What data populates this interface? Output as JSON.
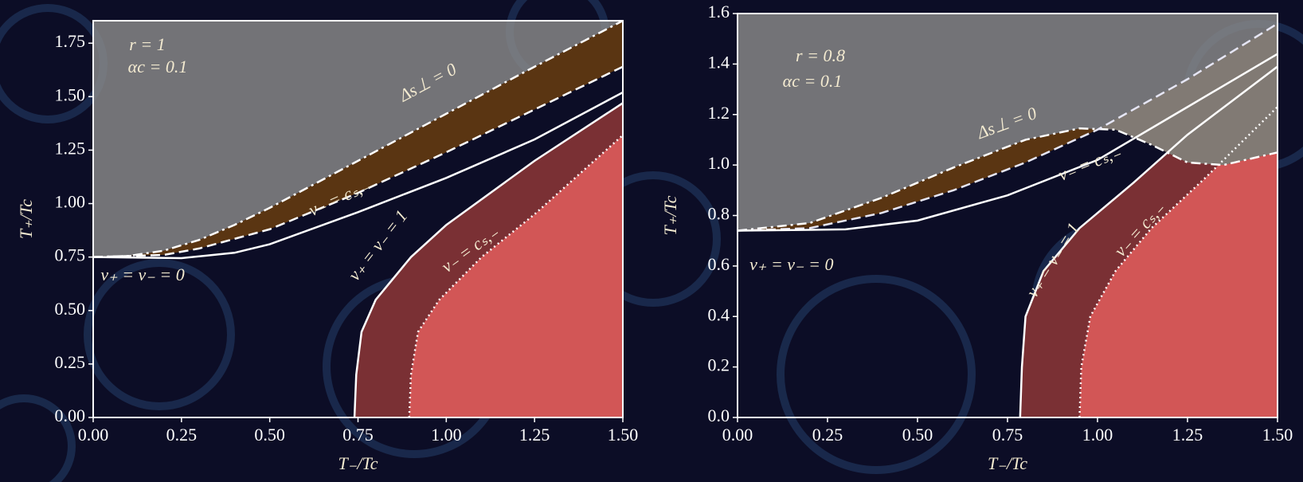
{
  "chart_data": [
    {
      "type": "line",
      "annotations": [
        "r = 1",
        "αc = 0.1"
      ],
      "xlabel": "T₋/Tc",
      "ylabel": "T₊/Tc",
      "xlim": [
        0,
        1.5
      ],
      "ylim": [
        0,
        1.855
      ],
      "xticks": [
        {
          "value": 0,
          "label": "0.00"
        },
        {
          "value": 0.25,
          "label": "0.25"
        },
        {
          "value": 0.5,
          "label": "0.50"
        },
        {
          "value": 0.75,
          "label": "0.75"
        },
        {
          "value": 1,
          "label": "1.00"
        },
        {
          "value": 1.25,
          "label": "1.25"
        },
        {
          "value": 1.5,
          "label": "1.50"
        }
      ],
      "yticks": [
        {
          "value": 0,
          "label": "0.00"
        },
        {
          "value": 0.25,
          "label": "0.25"
        },
        {
          "value": 0.5,
          "label": "0.50"
        },
        {
          "value": 0.75,
          "label": "0.75"
        },
        {
          "value": 1,
          "label": "1.00"
        },
        {
          "value": 1.25,
          "label": "1.25"
        },
        {
          "value": 1.5,
          "label": "1.50"
        },
        {
          "value": 1.75,
          "label": "1.75"
        }
      ],
      "region_colors": [
        "#8a8a8a",
        "#5a3512",
        "#7a3034",
        "#d25656"
      ],
      "series": [
        {
          "name": "Δs⊥ = 0",
          "color": "#ffffff",
          "dash": "dashdot",
          "x": [
            0,
            0.1,
            0.2,
            0.3,
            0.4,
            0.5,
            0.75,
            1.0,
            1.25,
            1.5
          ],
          "values": [
            0.75,
            0.755,
            0.78,
            0.83,
            0.9,
            0.98,
            1.2,
            1.42,
            1.64,
            1.855
          ]
        },
        {
          "name": "v₋ = cₛ,₋",
          "color": "#ffffff",
          "dash": "dashed",
          "x": [
            0,
            0.2,
            0.3,
            0.5,
            0.75,
            1.0,
            1.25,
            1.5
          ],
          "values": [
            0.75,
            0.76,
            0.79,
            0.88,
            1.05,
            1.24,
            1.44,
            1.64
          ]
        },
        {
          "name": "v₊ = v₋ = 0",
          "color": "#ffffff",
          "dash": "solid",
          "x": [
            0,
            0.25,
            0.4,
            0.5,
            0.75,
            1.0,
            1.25,
            1.5
          ],
          "values": [
            0.75,
            0.745,
            0.77,
            0.81,
            0.96,
            1.12,
            1.3,
            1.52
          ]
        },
        {
          "name": "v₊ = v₋ = 1",
          "color": "#ffffff",
          "dash": "solid",
          "x": [
            0.74,
            0.745,
            0.76,
            0.8,
            0.9,
            1.0,
            1.25,
            1.5
          ],
          "values": [
            0,
            0.2,
            0.4,
            0.55,
            0.75,
            0.9,
            1.2,
            1.47
          ]
        },
        {
          "name": "v₋ = cₛ,₋",
          "color": "#ffffff",
          "dash": "dotted",
          "x": [
            0.895,
            0.9,
            0.92,
            0.98,
            1.1,
            1.25,
            1.5
          ],
          "values": [
            0,
            0.2,
            0.4,
            0.55,
            0.75,
            0.95,
            1.32
          ]
        }
      ]
    },
    {
      "type": "line",
      "annotations": [
        "r = 0.8",
        "αc = 0.1"
      ],
      "xlabel": "T₋/Tc",
      "ylabel": "T₊/Tc",
      "xlim": [
        0,
        1.5
      ],
      "ylim": [
        0,
        1.6
      ],
      "xticks": [
        {
          "value": 0,
          "label": "0.00"
        },
        {
          "value": 0.25,
          "label": "0.25"
        },
        {
          "value": 0.5,
          "label": "0.50"
        },
        {
          "value": 0.75,
          "label": "0.75"
        },
        {
          "value": 1,
          "label": "1.00"
        },
        {
          "value": 1.25,
          "label": "1.25"
        },
        {
          "value": 1.5,
          "label": "1.50"
        }
      ],
      "yticks": [
        {
          "value": 0,
          "label": "0.0"
        },
        0.2,
        0.4,
        0.6,
        0.8,
        {
          "value": 1,
          "label": "1.0"
        },
        1.2,
        1.4,
        1.6
      ],
      "region_colors": [
        "#8a8a8a",
        "#5a3512",
        "#7a3034",
        "#d25656"
      ],
      "series": [
        {
          "name": "Δs⊥ = 0",
          "color": "#ffffff",
          "dash": "dashdot",
          "x": [
            0,
            0.2,
            0.4,
            0.6,
            0.8,
            0.95,
            1.05,
            1.15,
            1.25,
            1.35,
            1.5
          ],
          "values": [
            0.74,
            0.77,
            0.87,
            0.99,
            1.1,
            1.145,
            1.14,
            1.08,
            1.01,
            1.0,
            1.05
          ]
        },
        {
          "name": "v₋ = cₛ,₋",
          "color": "#e6e6f5",
          "dash": "dashed",
          "x": [
            0,
            0.2,
            0.4,
            0.6,
            0.8,
            1.0,
            1.25,
            1.5
          ],
          "values": [
            0.74,
            0.75,
            0.81,
            0.9,
            1.01,
            1.14,
            1.34,
            1.56
          ]
        },
        {
          "name": "v₊ = v₋ = 0",
          "color": "#ffffff",
          "dash": "solid",
          "x": [
            0,
            0.3,
            0.5,
            0.75,
            1.0,
            1.25,
            1.5
          ],
          "values": [
            0.74,
            0.745,
            0.78,
            0.88,
            1.02,
            1.23,
            1.44
          ]
        },
        {
          "name": "v₊ = v₋ = 1",
          "color": "#ffffff",
          "dash": "solid",
          "x": [
            0.785,
            0.79,
            0.8,
            0.85,
            0.95,
            1.1,
            1.25,
            1.5
          ],
          "values": [
            0,
            0.2,
            0.4,
            0.58,
            0.75,
            0.93,
            1.12,
            1.39
          ]
        },
        {
          "name": "v₋ = cₛ,₋",
          "color": "#ffffff",
          "dash": "dotted",
          "x": [
            0.95,
            0.955,
            0.98,
            1.05,
            1.15,
            1.3,
            1.5
          ],
          "values": [
            0,
            0.2,
            0.4,
            0.58,
            0.75,
            0.95,
            1.23
          ]
        }
      ]
    }
  ]
}
